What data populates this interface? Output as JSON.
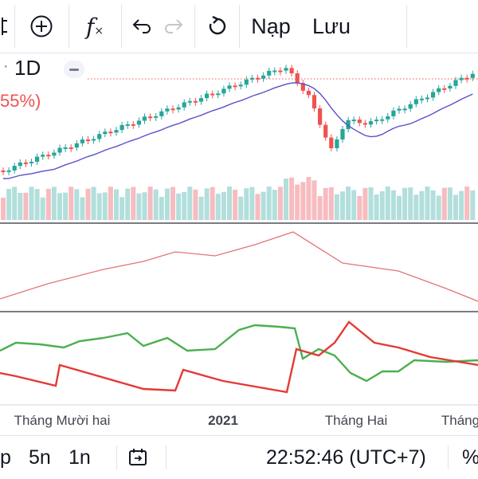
{
  "toolbar": {
    "nap_label": "Nạp",
    "luu_label": "Lưu",
    "fx_label": "f"
  },
  "legend": {
    "interval": "1D",
    "change_pct": "55%)"
  },
  "axis": {
    "x_labels": [
      "Tháng Mười hai",
      "2021",
      "Tháng Hai",
      "Tháng"
    ]
  },
  "bottombar": {
    "range_p": "p",
    "range_5n": "5n",
    "range_1n": "1n",
    "clock": "22:52:46 (UTC+7)",
    "pct": "%"
  },
  "colors": {
    "up": "#26a69a",
    "down": "#ef5350",
    "ma": "#5b4fc9",
    "vol_up": "#b2dfdb",
    "vol_down": "#f7bcc0",
    "osc_green": "#4caf50",
    "osc_red": "#e53935",
    "line_pink": "#e57373"
  }
}
